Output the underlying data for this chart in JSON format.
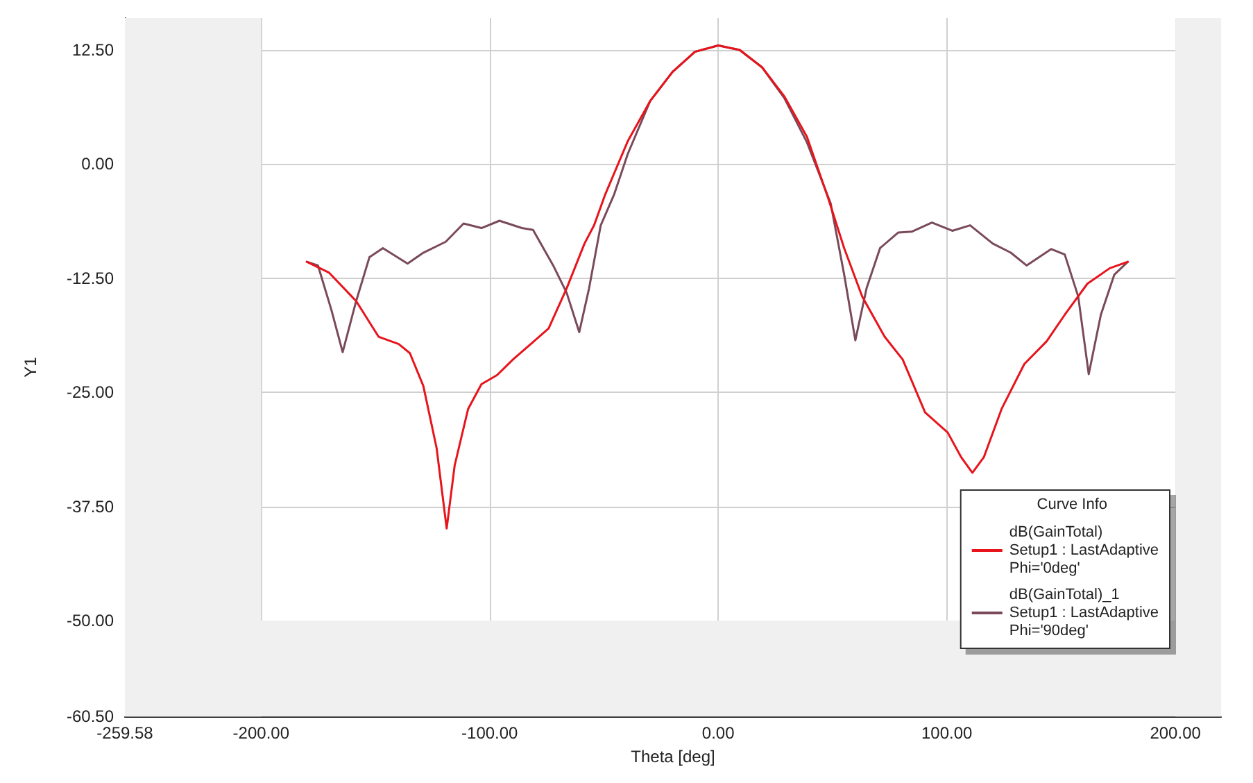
{
  "chart_data": {
    "type": "line",
    "xlabel": "Theta [deg]",
    "ylabel": "Y1",
    "legend_title": "Curve Info",
    "legend": "bottom right",
    "grid": true,
    "marker": "none",
    "line_style": "solid",
    "xlim": [
      -259.58,
      220
    ],
    "ylim": [
      -60.5,
      16
    ],
    "xticks": [
      {
        "value": -259.58,
        "label": "-259.58"
      },
      {
        "value": -200,
        "label": "-200.00"
      },
      {
        "value": -100,
        "label": "-100.00"
      },
      {
        "value": 0,
        "label": "0.00"
      },
      {
        "value": 100,
        "label": "100.00"
      },
      {
        "value": 200,
        "label": "200.00"
      }
    ],
    "yticks": [
      {
        "value": 12.5,
        "label": "12.50"
      },
      {
        "value": 0,
        "label": "0.00"
      },
      {
        "value": -12.5,
        "label": "-12.50"
      },
      {
        "value": -25,
        "label": "-25.00"
      },
      {
        "value": -37.5,
        "label": "-37.50"
      },
      {
        "value": -50,
        "label": "-50.00"
      },
      {
        "value": -60.5,
        "label": "-60.50"
      }
    ],
    "bands": [
      {
        "axis": "x",
        "from": -259.58,
        "to": -200,
        "color": "#f0f0f0"
      },
      {
        "axis": "x",
        "from": 200,
        "to": 220,
        "color": "#f0f0f0"
      },
      {
        "axis": "y",
        "from": -60.5,
        "to": -50,
        "color": "#f0f0f0"
      }
    ],
    "series": [
      {
        "name": "dB(GainTotal)\nSetup1 : LastAdaptive\nPhi='0deg'",
        "color": "#e8141c",
        "x": [
          -180,
          -170.2,
          -158.4,
          -148.6,
          -139.8,
          -134.9,
          -129,
          -123.2,
          -118.8,
          -115.3,
          -109.4,
          -103.6,
          -96.7,
          -89.8,
          -82,
          -74.2,
          -66.3,
          -58.5,
          -54.3,
          -49.4,
          -39.6,
          -29.8,
          -20,
          -10.2,
          0,
          9.4,
          19.2,
          29,
          38.8,
          48.2,
          55.1,
          63,
          72.8,
          80.7,
          90.5,
          100.4,
          106.3,
          111.2,
          116.2,
          124,
          133.9,
          143.7,
          151.6,
          161.5,
          171.3,
          179.2
        ],
        "values": [
          -10.7,
          -11.9,
          -15,
          -18.9,
          -19.7,
          -20.7,
          -24.3,
          -31.1,
          -39.9,
          -33,
          -26.8,
          -24.1,
          -23.1,
          -21.4,
          -19.7,
          -18,
          -13.6,
          -8.7,
          -6.7,
          -3.3,
          2.5,
          6.9,
          10.1,
          12.3,
          13,
          12.5,
          10.6,
          7.4,
          3,
          -3.8,
          -9.2,
          -14.5,
          -18.9,
          -21.4,
          -27.2,
          -29.4,
          -32.1,
          -33.8,
          -32.1,
          -26.8,
          -21.9,
          -19.4,
          -16.5,
          -13.1,
          -11.4,
          -10.7
        ]
      },
      {
        "name": "dB(GainTotal)_1\nSetup1 : LastAdaptive\nPhi='90deg'",
        "color": "#7a4a5a",
        "x": [
          -180,
          -175.1,
          -169.2,
          -164.3,
          -158.4,
          -152.6,
          -146.7,
          -135.9,
          -129,
          -119.2,
          -111.4,
          -103.6,
          -95.7,
          -85.9,
          -81,
          -72.2,
          -66.3,
          -60.8,
          -56.5,
          -51.4,
          -45.5,
          -39.6,
          -29.8,
          -20,
          -10.2,
          0,
          9.4,
          19.2,
          29,
          38.8,
          49.2,
          55.1,
          60,
          64.9,
          70.8,
          78.7,
          84.6,
          93.5,
          102.4,
          110.2,
          120.1,
          128,
          134.9,
          145.7,
          151.6,
          157.5,
          162.1,
          167.4,
          173.3,
          179.2
        ],
        "values": [
          -10.7,
          -11.1,
          -16,
          -20.6,
          -15,
          -10.2,
          -9.2,
          -10.9,
          -9.7,
          -8.5,
          -6.5,
          -7,
          -6.2,
          -7,
          -7.2,
          -11.1,
          -14.1,
          -18.4,
          -13.6,
          -6.7,
          -3.3,
          1.1,
          6.9,
          10.1,
          12.3,
          13,
          12.5,
          10.6,
          7.2,
          2.4,
          -4.3,
          -12.1,
          -19.3,
          -13.6,
          -9.2,
          -7.5,
          -7.4,
          -6.4,
          -7.3,
          -6.7,
          -8.7,
          -9.7,
          -11.1,
          -9.3,
          -9.9,
          -14.5,
          -23,
          -16.5,
          -12.1,
          -10.7
        ]
      }
    ]
  }
}
